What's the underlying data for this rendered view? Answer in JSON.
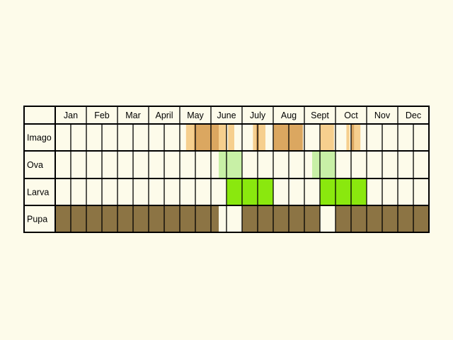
{
  "months": [
    "Jan",
    "Feb",
    "Mar",
    "April",
    "May",
    "June",
    "July",
    "Aug",
    "Sept",
    "Oct",
    "Nov",
    "Dec"
  ],
  "stages": [
    "Imago",
    "Ova",
    "Larva",
    "Pupa"
  ],
  "colors": {
    "background": "#fdfbea",
    "imago_light": "#f6cf8e",
    "imago_dark": "#dba760",
    "ova": "#c8f0a6",
    "larva": "#8ae80e",
    "pupa": "#8c7444",
    "grid": "#000000"
  },
  "chart_data": {
    "type": "table",
    "divisions_per_month": 2,
    "rows": [
      {
        "stage": "Imago",
        "segments": [
          {
            "from": 4.2,
            "to": 4.45,
            "shade": "light"
          },
          {
            "from": 4.45,
            "to": 5.25,
            "shade": "dark"
          },
          {
            "from": 5.25,
            "to": 5.5,
            "shade": "light"
          },
          {
            "from": 5.55,
            "to": 5.75,
            "shade": "light"
          },
          {
            "from": 6.35,
            "to": 6.45,
            "shade": "light"
          },
          {
            "from": 6.45,
            "to": 6.55,
            "shade": "dark"
          },
          {
            "from": 6.55,
            "to": 6.75,
            "shade": "light"
          },
          {
            "from": 7.0,
            "to": 7.95,
            "shade": "dark"
          },
          {
            "from": 8.5,
            "to": 8.95,
            "shade": "light"
          },
          {
            "from": 9.35,
            "to": 9.45,
            "shade": "light"
          },
          {
            "from": 9.5,
            "to": 9.6,
            "shade": "dark"
          },
          {
            "from": 9.6,
            "to": 9.8,
            "shade": "light"
          }
        ]
      },
      {
        "stage": "Ova",
        "segments": [
          {
            "from": 5.25,
            "to": 6.0,
            "shade": "ova"
          },
          {
            "from": 8.25,
            "to": 9.0,
            "shade": "ova"
          }
        ]
      },
      {
        "stage": "Larva",
        "segments": [
          {
            "from": 5.5,
            "to": 7.0,
            "shade": "larva"
          },
          {
            "from": 8.5,
            "to": 10.0,
            "shade": "larva"
          }
        ]
      },
      {
        "stage": "Pupa",
        "segments": [
          {
            "from": 0.0,
            "to": 5.25,
            "shade": "pupa"
          },
          {
            "from": 6.0,
            "to": 8.5,
            "shade": "pupa"
          },
          {
            "from": 9.0,
            "to": 12.0,
            "shade": "pupa"
          }
        ]
      }
    ]
  }
}
